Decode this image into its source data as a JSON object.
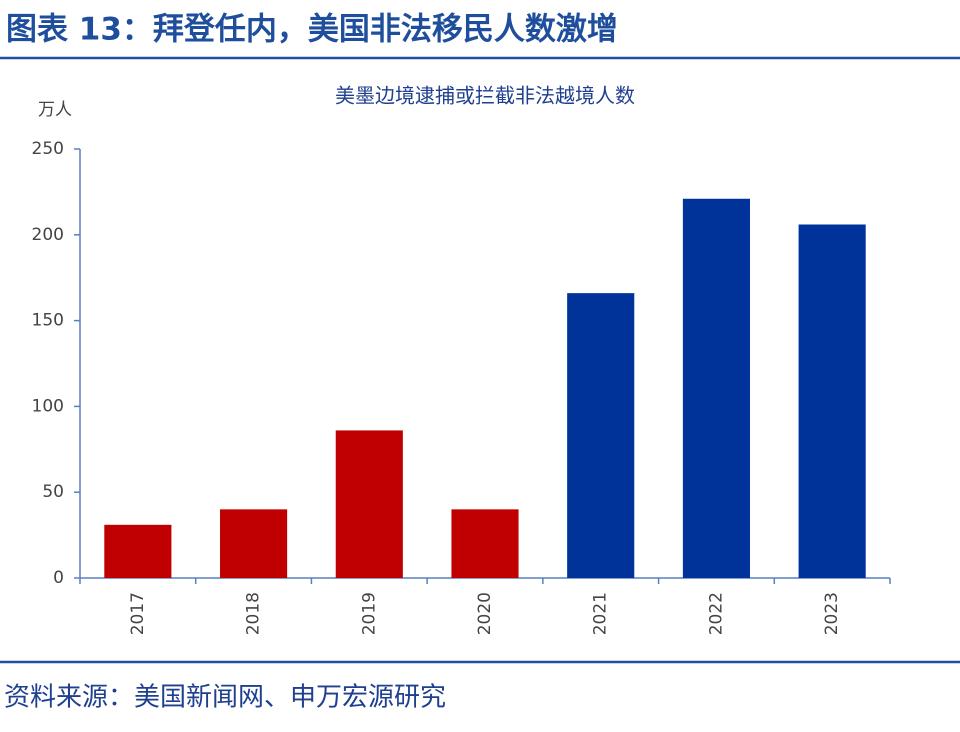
{
  "header": {
    "title": "图表 13：拜登任内，美国非法移民人数激增"
  },
  "chart_data": {
    "type": "bar",
    "title": "美墨边境逮捕或拦截非法越境人数",
    "ylabel": "万人",
    "categories": [
      "2017",
      "2018",
      "2019",
      "2020",
      "2021",
      "2022",
      "2023"
    ],
    "values": [
      31,
      40,
      86,
      40,
      166,
      221,
      206
    ],
    "colors": [
      "#c00000",
      "#c00000",
      "#c00000",
      "#c00000",
      "#003399",
      "#003399",
      "#003399"
    ],
    "ylim": [
      0,
      250
    ],
    "yticks": [
      0,
      50,
      100,
      150,
      200,
      250
    ],
    "grid": false
  },
  "footer": {
    "source": "资料来源：美国新闻网、申万宏源研究"
  }
}
